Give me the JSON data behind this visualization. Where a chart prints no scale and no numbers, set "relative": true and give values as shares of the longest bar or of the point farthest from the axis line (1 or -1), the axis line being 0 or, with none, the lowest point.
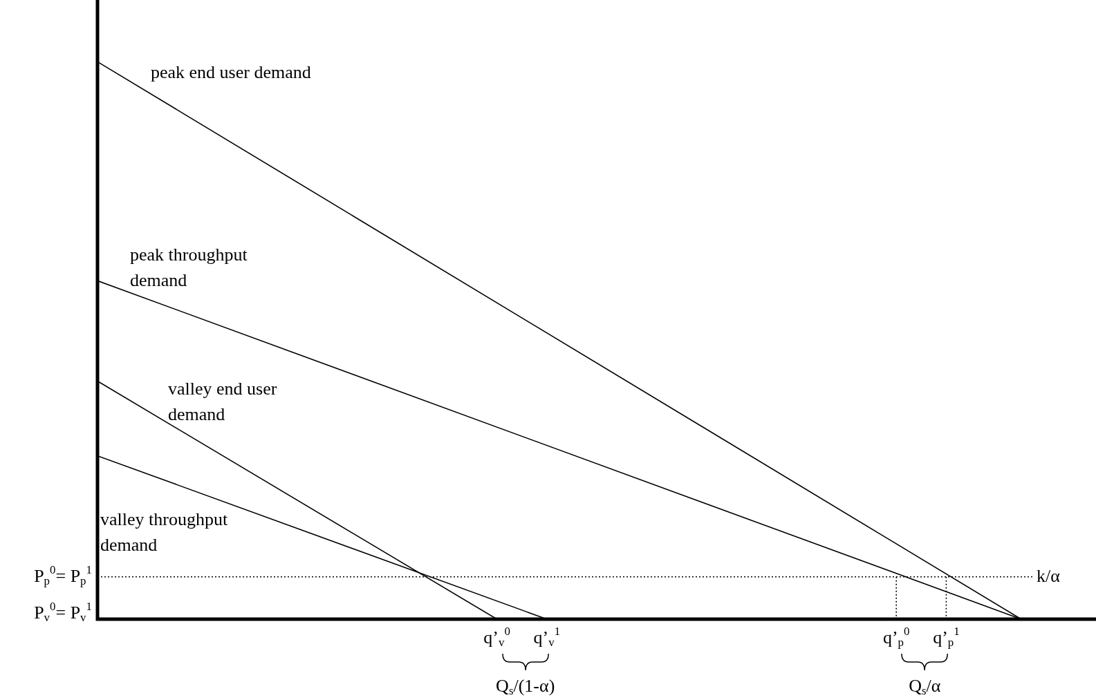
{
  "chart_data": {
    "type": "line",
    "relative": true,
    "categories": [
      null,
      null,
      null,
      null,
      null,
      null,
      null,
      null,
      null,
      null,
      null,
      null,
      null,
      null,
      null,
      null,
      "q’$_{v}$$^{0}$",
      null,
      "q’$_{v}$$^{1}$",
      null,
      null,
      null,
      null,
      null,
      null,
      null,
      null,
      null,
      null,
      null,
      null,
      null,
      "q’$_{p}$$^{0}$",
      null,
      "q’$_{p}$$^{1}$",
      null,
      null,
      null,
      null,
      null,
      null
    ],
    "series": [
      {
        "name": "peak end user demand",
        "color": "#000000",
        "values": [
          1,
          null,
          null,
          null,
          null,
          null,
          null,
          null,
          null,
          null,
          null,
          null,
          null,
          null,
          null,
          null,
          null,
          null,
          null,
          null,
          null,
          null,
          null,
          null,
          null,
          null,
          null,
          null,
          null,
          null,
          null,
          null,
          null,
          null,
          null,
          null,
          null,
          0,
          null,
          null,
          null
        ]
      },
      {
        "name": "peak throughput demand",
        "color": "#000000",
        "values": [
          0.607,
          null,
          null,
          null,
          null,
          null,
          null,
          null,
          null,
          null,
          null,
          null,
          null,
          null,
          null,
          null,
          null,
          null,
          null,
          null,
          null,
          null,
          null,
          null,
          null,
          null,
          null,
          null,
          null,
          null,
          null,
          null,
          null,
          null,
          null,
          null,
          null,
          0,
          null,
          null,
          null
        ]
      },
      {
        "name": "valley end user demand",
        "color": "#000000",
        "values": [
          0.427,
          null,
          null,
          null,
          null,
          null,
          null,
          null,
          null,
          null,
          null,
          null,
          null,
          null,
          null,
          null,
          0,
          null,
          null,
          null,
          null,
          null,
          null,
          null,
          null,
          null,
          null,
          null,
          null,
          null,
          null,
          null,
          null,
          null,
          null,
          null,
          null,
          null,
          null,
          null,
          null
        ]
      },
      {
        "name": "valley throughput demand",
        "color": "#000000",
        "values": [
          0.293,
          null,
          null,
          null,
          null,
          null,
          null,
          null,
          null,
          null,
          null,
          null,
          null,
          null,
          null,
          null,
          null,
          null,
          0,
          null,
          null,
          null,
          null,
          null,
          null,
          null,
          null,
          null,
          null,
          null,
          null,
          null,
          null,
          null,
          null,
          null,
          null,
          null,
          null,
          null,
          null
        ]
      },
      {
        "color": "#000000",
        "line_style": "dotted",
        "x": [
          "q’$_{p}$$^{0}$",
          "q’$_{p}$$^{0}$"
        ],
        "values": [
          0.076,
          0
        ]
      },
      {
        "color": "#000000",
        "line_style": "dotted",
        "x": [
          "q’$_{p}$$^{1}$",
          "q’$_{p}$$^{1}$"
        ],
        "values": [
          0.076,
          0
        ]
      }
    ],
    "ref_lines": [
      {
        "axis": "y",
        "value": 0.076,
        "label": "k/α",
        "line_style": "dotted",
        "color": "#000000"
      }
    ],
    "annotations": [
      "P$_{p}$$^{0}$= P$_{p}$$^{1}$",
      "P$_{v}$$^{0}$= P$_{v}$$^{1}$",
      "Q$_{s}$/(1-α)",
      "Q$_{s}$/α"
    ]
  }
}
